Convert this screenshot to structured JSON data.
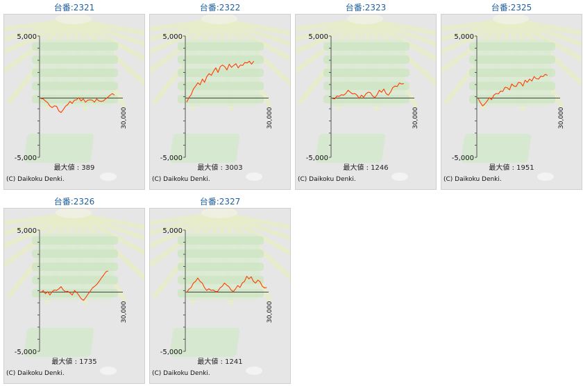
{
  "machine_label_prefix": "台番:",
  "max_label_prefix": "最大値 : ",
  "copyright": "(C) Daikoku Denki.",
  "chart_data": [
    {
      "type": "line",
      "title": "2321",
      "max": "389",
      "ylim": [
        -5000,
        5000
      ],
      "yticks": [
        "5,000",
        "-5,000"
      ],
      "xtick": "30,000",
      "line_color": "#ff3c00",
      "values": [
        0,
        -100,
        -200,
        -400,
        -600,
        -800,
        -600,
        -700,
        -1000,
        -1200,
        -900,
        -700,
        -500,
        -300,
        -400,
        -200,
        -100,
        0,
        -200,
        -100,
        -300,
        -200,
        -100,
        -200,
        -300,
        -100,
        -200,
        -300,
        -200,
        -100,
        100,
        200,
        389,
        200
      ]
    },
    {
      "type": "line",
      "title": "2322",
      "max": "3003",
      "ylim": [
        -5000,
        5000
      ],
      "yticks": [
        "5,000",
        "-5,000"
      ],
      "xtick": "30,000",
      "line_color": "#ff3c00",
      "values": [
        -300,
        0,
        300,
        700,
        1000,
        1200,
        1100,
        1500,
        1300,
        1700,
        2000,
        1800,
        2200,
        2400,
        2100,
        2500,
        2700,
        2500,
        2300,
        2700,
        2500,
        2600,
        2800,
        2400,
        2700,
        2600,
        2900,
        2800,
        3003,
        2700,
        3003
      ]
    },
    {
      "type": "line",
      "title": "2323",
      "max": "1246",
      "ylim": [
        -5000,
        5000
      ],
      "yticks": [
        "5,000",
        "-5,000"
      ],
      "xtick": "30,000",
      "line_color": "#ff3c00",
      "values": [
        0,
        -100,
        200,
        100,
        300,
        200,
        400,
        600,
        500,
        300,
        400,
        200,
        0,
        200,
        100,
        300,
        500,
        400,
        200,
        0,
        300,
        600,
        500,
        700,
        400,
        200,
        500,
        800,
        1000,
        900,
        1246,
        1100,
        1200
      ]
    },
    {
      "type": "line",
      "title": "2325",
      "max": "1951",
      "ylim": [
        -5000,
        5000
      ],
      "yticks": [
        "5,000",
        "-5,000"
      ],
      "xtick": "30,000",
      "line_color": "#ff3c00",
      "values": [
        0,
        -400,
        -600,
        -500,
        -200,
        0,
        -100,
        200,
        400,
        300,
        600,
        500,
        900,
        800,
        700,
        1100,
        1000,
        900,
        1300,
        1200,
        1000,
        1400,
        1300,
        1500,
        1400,
        1700,
        1600,
        1500,
        1800,
        1700,
        1951,
        1800
      ]
    },
    {
      "type": "line",
      "title": "2326",
      "max": "1735",
      "ylim": [
        -5000,
        5000
      ],
      "yticks": [
        "5,000",
        "-5,000"
      ],
      "xtick": "30,000",
      "line_color": "#ff3c00",
      "values": [
        0,
        100,
        -100,
        0,
        -200,
        0,
        200,
        100,
        300,
        400,
        200,
        0,
        100,
        -100,
        -200,
        100,
        0,
        -300,
        -500,
        -700,
        -400,
        -200,
        100,
        300,
        500,
        600,
        900,
        1100,
        1400,
        1600,
        1735
      ]
    },
    {
      "type": "line",
      "title": "2327",
      "max": "1241",
      "ylim": [
        -5000,
        5000
      ],
      "yticks": [
        "5,000",
        "-5,000"
      ],
      "xtick": "30,000",
      "line_color": "#ff3c00",
      "values": [
        0,
        200,
        400,
        700,
        900,
        1100,
        900,
        700,
        400,
        100,
        300,
        100,
        200,
        0,
        100,
        300,
        500,
        700,
        600,
        400,
        200,
        0,
        300,
        500,
        400,
        700,
        900,
        1241,
        1100,
        1200,
        900,
        700,
        1000,
        800,
        500,
        300,
        400
      ]
    }
  ]
}
